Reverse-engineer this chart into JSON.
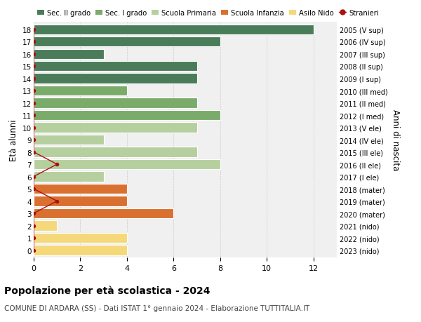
{
  "ages": [
    18,
    17,
    16,
    15,
    14,
    13,
    12,
    11,
    10,
    9,
    8,
    7,
    6,
    5,
    4,
    3,
    2,
    1,
    0
  ],
  "right_labels": [
    "2005 (V sup)",
    "2006 (IV sup)",
    "2007 (III sup)",
    "2008 (II sup)",
    "2009 (I sup)",
    "2010 (III med)",
    "2011 (II med)",
    "2012 (I med)",
    "2013 (V ele)",
    "2014 (IV ele)",
    "2015 (III ele)",
    "2016 (II ele)",
    "2017 (I ele)",
    "2018 (mater)",
    "2019 (mater)",
    "2020 (mater)",
    "2021 (nido)",
    "2022 (nido)",
    "2023 (nido)"
  ],
  "bar_values": [
    12,
    8,
    3,
    7,
    7,
    4,
    7,
    8,
    7,
    3,
    7,
    8,
    3,
    4,
    4,
    6,
    1,
    4,
    4
  ],
  "bar_colors": [
    "#4a7c59",
    "#4a7c59",
    "#4a7c59",
    "#4a7c59",
    "#4a7c59",
    "#7aab6a",
    "#7aab6a",
    "#7aab6a",
    "#b5cf9e",
    "#b5cf9e",
    "#b5cf9e",
    "#b5cf9e",
    "#b5cf9e",
    "#d97030",
    "#d97030",
    "#d97030",
    "#f5d87a",
    "#f5d87a",
    "#f5d87a"
  ],
  "stranieri_x": [
    0,
    0,
    0,
    0,
    0,
    0,
    0,
    0,
    0,
    0,
    0,
    1,
    0,
    0,
    1,
    0,
    0,
    0,
    0
  ],
  "color_sec2": "#4a7c59",
  "color_sec1": "#7aab6a",
  "color_prim": "#b5cf9e",
  "color_inf": "#d97030",
  "color_nido": "#f5d87a",
  "color_stranieri": "#aa1111",
  "title": "Popolazione per età scolastica - 2024",
  "subtitle": "COMUNE DI ARDARA (SS) - Dati ISTAT 1° gennaio 2024 - Elaborazione TUTTITALIA.IT",
  "ylabel": "Età alunni",
  "right_ylabel": "Anni di nascita",
  "xlim_max": 13,
  "xticks": [
    0,
    2,
    4,
    6,
    8,
    10,
    12
  ],
  "bar_bg_color": "#f0f0f0"
}
